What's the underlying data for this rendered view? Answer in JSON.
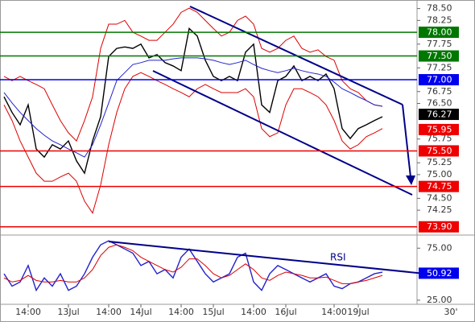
{
  "chart_data": [
    {
      "type": "line",
      "categories": [
        null,
        null,
        null,
        "14:00",
        null,
        null,
        null,
        null,
        "13Jul",
        null,
        null,
        null,
        null,
        "14:00",
        null,
        null,
        null,
        "14Jul",
        null,
        null,
        null,
        null,
        "14:00",
        null,
        null,
        null,
        "15Jul",
        null,
        null,
        null,
        null,
        "14:00",
        null,
        null,
        null,
        "16Jul",
        null,
        null,
        null,
        null,
        null,
        "14:00",
        null,
        null,
        "19Jul",
        null,
        null,
        null
      ],
      "period_label": "30'",
      "ylim": [
        73.76,
        78.68
      ],
      "yticks": [
        {
          "value": 78.5,
          "label": "78.50"
        },
        {
          "value": 78.25,
          "label": "78.25"
        },
        {
          "value": 77.75,
          "label": "77.75"
        },
        {
          "value": 77.25,
          "label": "77.25"
        },
        {
          "value": 76.75,
          "label": "76.75"
        },
        {
          "value": 76.5,
          "label": "76.50"
        },
        {
          "value": 75.75,
          "label": "75.75"
        },
        {
          "value": 75.25,
          "label": "75.25"
        },
        {
          "value": 75,
          "label": "75.00"
        },
        {
          "value": 74.5,
          "label": "74.50"
        },
        {
          "value": 74.25,
          "label": "74.25"
        }
      ],
      "series": [
        {
          "color": "#000000",
          "values": [
            76.64,
            76.31,
            76.05,
            76.47,
            75.54,
            75.37,
            75.63,
            75.54,
            75.71,
            75.29,
            75.03,
            75.71,
            76.22,
            77.49,
            77.66,
            77.69,
            77.66,
            77.75,
            77.46,
            77.53,
            77.36,
            77.29,
            77.19,
            78.08,
            77.92,
            77.41,
            77.07,
            76.98,
            77.07,
            76.98,
            77.58,
            77.75,
            76.47,
            76.31,
            76.98,
            77.07,
            77.29,
            76.98,
            77.07,
            76.98,
            77.12,
            76.81,
            75.97,
            75.76,
            75.97,
            76.05,
            76.14,
            76.22
          ]
        },
        {
          "color": "#dd0000",
          "values": [
            77.07,
            76.98,
            77.07,
            76.98,
            76.9,
            76.81,
            76.47,
            76.14,
            75.88,
            75.71,
            76.14,
            76.64,
            77.66,
            78.17,
            78.17,
            78.25,
            78.0,
            77.92,
            77.83,
            77.83,
            78.0,
            78.17,
            78.42,
            78.51,
            78.42,
            78.25,
            78.08,
            77.92,
            78.0,
            78.25,
            78.34,
            78.17,
            77.66,
            77.58,
            77.66,
            77.83,
            77.92,
            77.66,
            77.58,
            77.63,
            77.49,
            77.41,
            76.98,
            76.81,
            76.73,
            76.56,
            76.47,
            76.44
          ]
        },
        {
          "color": "#dd0000",
          "values": [
            76.47,
            76.14,
            75.71,
            75.37,
            75.03,
            74.86,
            74.86,
            74.95,
            75.03,
            74.86,
            74.44,
            74.19,
            74.78,
            75.63,
            76.31,
            76.81,
            77.07,
            77.15,
            77.07,
            76.98,
            76.9,
            76.81,
            76.73,
            76.64,
            76.81,
            76.9,
            76.81,
            76.73,
            76.73,
            76.73,
            76.81,
            76.64,
            75.97,
            75.8,
            75.88,
            76.47,
            76.81,
            76.81,
            76.73,
            76.64,
            76.47,
            76.14,
            75.71,
            75.54,
            75.63,
            75.8,
            75.88,
            75.97
          ]
        },
        {
          "color": "#2222cc",
          "values": [
            76.73,
            76.51,
            76.31,
            76.14,
            75.97,
            75.83,
            75.71,
            75.63,
            75.54,
            75.46,
            75.37,
            75.63,
            76.05,
            76.51,
            76.98,
            77.15,
            77.32,
            77.36,
            77.41,
            77.41,
            77.41,
            77.44,
            77.46,
            77.46,
            77.46,
            77.44,
            77.41,
            77.36,
            77.32,
            77.36,
            77.41,
            77.32,
            77.24,
            77.19,
            77.15,
            77.19,
            77.24,
            77.19,
            77.15,
            77.12,
            77.07,
            76.95,
            76.81,
            76.73,
            76.64,
            76.56,
            76.47,
            76.44
          ]
        }
      ],
      "levels": [
        {
          "value": 78.0,
          "label": "78.00",
          "color": "#007700",
          "line": true
        },
        {
          "value": 77.5,
          "label": "77.50",
          "color": "#007700",
          "line": true
        },
        {
          "value": 77.0,
          "label": "77.00",
          "color": "#0000ee",
          "line": true
        },
        {
          "value": 76.27,
          "label": "76.27",
          "color": "#000000",
          "line": false
        },
        {
          "value": 75.95,
          "label": "75.95",
          "color": "#ee0000",
          "line": false
        },
        {
          "value": 75.5,
          "label": "75.50",
          "color": "#ee0000",
          "line": true
        },
        {
          "value": 74.75,
          "label": "74.75",
          "color": "#ee0000",
          "line": true
        },
        {
          "value": 73.9,
          "label": "73.90",
          "color": "#ee0000",
          "line": true
        }
      ]
    },
    {
      "type": "line",
      "annotation": "RSI",
      "ylim": [
        22.6,
        84.5
      ],
      "yticks": [
        {
          "value": 75,
          "label": "75.00"
        },
        {
          "value": 25,
          "label": "25.00"
        }
      ],
      "series": [
        {
          "color": "#2222cc",
          "values": [
            50.4,
            38.5,
            42.5,
            58.3,
            34.5,
            46.4,
            38.5,
            50.4,
            34.5,
            38.5,
            50.4,
            66.3,
            78.2,
            82.1,
            78.2,
            74.2,
            70.2,
            58.3,
            62.3,
            50.4,
            54.4,
            46.4,
            66.3,
            74.2,
            62.3,
            50.4,
            42.5,
            46.4,
            50.4,
            66.3,
            70.2,
            42.5,
            34.5,
            50.4,
            58.3,
            54.4,
            50.4,
            46.4,
            42.5,
            46.4,
            50.4,
            38.5,
            36.1,
            40.9,
            42.5,
            46.4,
            50.4,
            52.0
          ]
        },
        {
          "color": "#dd0000",
          "values": [
            46.4,
            42.5,
            44.0,
            48.8,
            44.0,
            42.5,
            42.5,
            44.0,
            42.5,
            42.5,
            46.4,
            54.4,
            67.9,
            75.8,
            78.2,
            75.8,
            72.6,
            66.3,
            62.3,
            58.3,
            54.4,
            52.0,
            56.7,
            64.7,
            64.7,
            58.3,
            50.4,
            46.4,
            48.8,
            54.4,
            59.9,
            54.4,
            46.4,
            44.0,
            48.8,
            52.0,
            50.4,
            48.8,
            46.4,
            46.4,
            47.2,
            44.0,
            40.9,
            40.9,
            42.5,
            44.0,
            46.4,
            48.8
          ]
        }
      ],
      "levels": [
        {
          "value": 50.92,
          "label": "50.92",
          "color": "#0000ee",
          "line": false
        }
      ]
    }
  ]
}
